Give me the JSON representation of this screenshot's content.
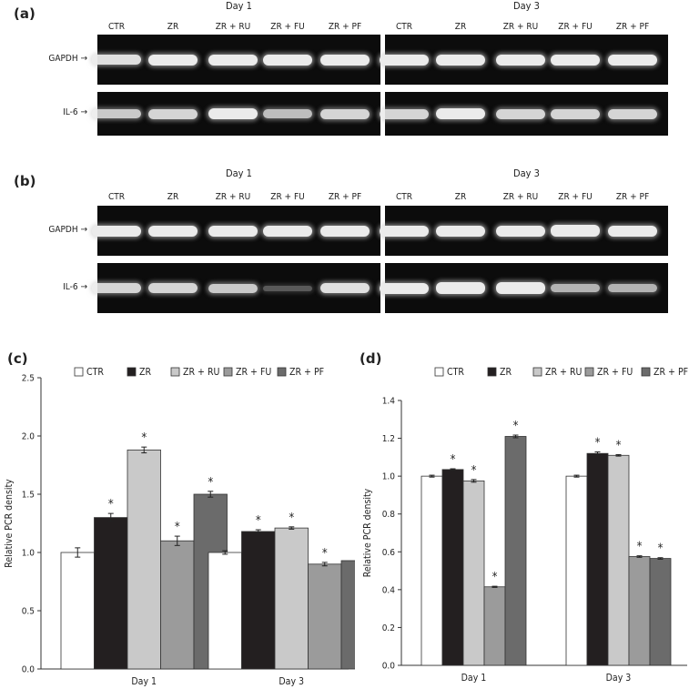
{
  "panels": {
    "a": "(a)",
    "b": "(b)",
    "c": "(c)",
    "d": "(d)"
  },
  "gels": {
    "day1": "Day 1",
    "day3": "Day 3",
    "lanes": [
      "CTR",
      "ZR",
      "ZR + RU",
      "ZR + FU",
      "ZR + PF"
    ],
    "rows": [
      "GAPDH →",
      "IL-6 →"
    ]
  },
  "chart_data": [
    {
      "type": "bar",
      "panel": "(c)",
      "categories": [
        "Day 1",
        "Day 3"
      ],
      "ylabel": "Relative PCR density",
      "ylim": [
        0,
        2.5
      ],
      "yticks": [
        "0.0",
        "0.5",
        "1.0",
        "1.5",
        "2.0",
        "2.5"
      ],
      "legend_placement": "top",
      "series": [
        {
          "name": "CTR",
          "color": "#ffffff",
          "values": [
            1.0,
            1.0
          ],
          "errors": [
            0.04,
            0.015
          ],
          "sig": [
            false,
            false
          ]
        },
        {
          "name": "ZR",
          "color": "#231f20",
          "values": [
            1.3,
            1.18
          ],
          "errors": [
            0.035,
            0.015
          ],
          "sig": [
            true,
            true
          ]
        },
        {
          "name": "ZR + RU",
          "color": "#c9c9c9",
          "values": [
            1.88,
            1.21
          ],
          "errors": [
            0.025,
            0.01
          ],
          "sig": [
            true,
            true
          ]
        },
        {
          "name": "ZR + FU",
          "color": "#9b9b9b",
          "values": [
            1.1,
            0.9
          ],
          "errors": [
            0.04,
            0.015
          ],
          "sig": [
            true,
            true
          ]
        },
        {
          "name": "ZR + PF",
          "color": "#6b6b6b",
          "values": [
            1.5,
            0.93
          ],
          "errors": [
            0.025,
            0.03
          ],
          "sig": [
            true,
            true
          ]
        }
      ],
      "significance_mark": "*"
    },
    {
      "type": "bar",
      "panel": "(d)",
      "categories": [
        "Day 1",
        "Day 3"
      ],
      "ylabel": "Relative PCR density",
      "ylim": [
        0,
        1.4
      ],
      "yticks": [
        "0.0",
        "0.2",
        "0.4",
        "0.6",
        "0.8",
        "1.0",
        "1.2",
        "1.4"
      ],
      "legend_placement": "top",
      "series": [
        {
          "name": "CTR",
          "color": "#ffffff",
          "values": [
            1.0,
            1.0
          ],
          "errors": [
            0.005,
            0.005
          ],
          "sig": [
            false,
            false
          ]
        },
        {
          "name": "ZR",
          "color": "#231f20",
          "values": [
            1.035,
            1.12
          ],
          "errors": [
            0.004,
            0.008
          ],
          "sig": [
            true,
            true
          ]
        },
        {
          "name": "ZR + RU",
          "color": "#c9c9c9",
          "values": [
            0.975,
            1.11
          ],
          "errors": [
            0.007,
            0.004
          ],
          "sig": [
            true,
            true
          ]
        },
        {
          "name": "ZR + FU",
          "color": "#9b9b9b",
          "values": [
            0.415,
            0.575
          ],
          "errors": [
            0.003,
            0.004
          ],
          "sig": [
            true,
            true
          ]
        },
        {
          "name": "ZR + PF",
          "color": "#6b6b6b",
          "values": [
            1.21,
            0.565
          ],
          "errors": [
            0.007,
            0.004
          ],
          "sig": [
            true,
            true
          ]
        }
      ],
      "significance_mark": "*"
    }
  ]
}
